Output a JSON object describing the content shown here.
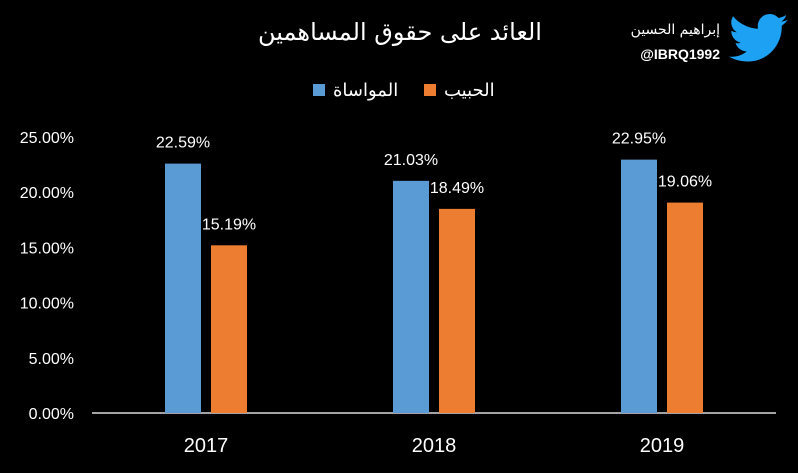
{
  "chart_data": {
    "type": "bar",
    "title": "العائد على حقوق المساهمين",
    "categories": [
      "2017",
      "2018",
      "2019"
    ],
    "series": [
      {
        "name": "المواساة",
        "values": [
          22.59,
          21.03,
          22.95
        ],
        "labels": [
          "22.59%",
          "21.03%",
          "22.95%"
        ],
        "color": "#5B9BD5"
      },
      {
        "name": "الحبيب",
        "values": [
          15.19,
          18.49,
          19.06
        ],
        "labels": [
          "15.19%",
          "18.49%",
          "19.06%"
        ],
        "color": "#ED7D31"
      }
    ],
    "ylim": [
      0,
      25
    ],
    "yticks": [
      "0.00%",
      "5.00%",
      "10.00%",
      "15.00%",
      "20.00%",
      "25.00%"
    ],
    "xlabel": "",
    "ylabel": "",
    "grid": false,
    "legend": "top-center"
  },
  "brand": {
    "name": "إبراهيم الحسين",
    "handle": "@IBRQ1992",
    "icon": "twitter-bird-icon",
    "icon_color": "#1DA1F2"
  },
  "colors": {
    "background": "#000000",
    "text": "#FFFFFF",
    "axis": "#D9D9D9"
  }
}
